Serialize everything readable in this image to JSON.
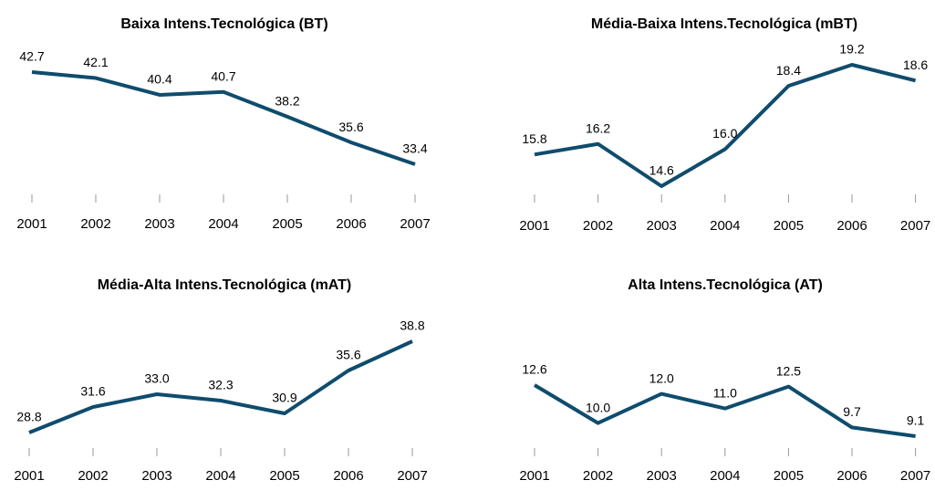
{
  "chart_data": [
    {
      "type": "line",
      "title": "Baixa Intens.Tecnológica (BT)",
      "categories": [
        "2001",
        "2002",
        "2003",
        "2004",
        "2005",
        "2006",
        "2007"
      ],
      "series": [
        {
          "color": "#0f4c6d",
          "values": [
            42.7,
            42.1,
            40.4,
            40.7,
            38.2,
            35.6,
            33.4
          ]
        }
      ]
    },
    {
      "type": "line",
      "title": "Média-Baixa Intens.Tecnológica (mBT)",
      "categories": [
        "2001",
        "2002",
        "2003",
        "2004",
        "2005",
        "2006",
        "2007"
      ],
      "series": [
        {
          "color": "#0f4c6d",
          "values": [
            15.8,
            16.2,
            14.6,
            16,
            18.4,
            19.2,
            18.6
          ],
          "value_labels": [
            "15.8",
            "16.2",
            "14.6",
            "16.0",
            "18.4",
            "19.2",
            "18.6"
          ]
        }
      ]
    },
    {
      "type": "line",
      "title": "Média-Alta Intens.Tecnológica (mAT)",
      "categories": [
        "2001",
        "2002",
        "2003",
        "2004",
        "2005",
        "2006",
        "2007"
      ],
      "series": [
        {
          "color": "#0f4c6d",
          "values": [
            28.8,
            31.6,
            33,
            32.3,
            30.9,
            35.6,
            38.8
          ],
          "value_labels": [
            "28.8",
            "31.6",
            "33.0",
            "32.3",
            "30.9",
            "35.6",
            "38.8"
          ]
        }
      ]
    },
    {
      "type": "line",
      "title": "Alta Intens.Tecnológica (AT)",
      "categories": [
        "2001",
        "2002",
        "2003",
        "2004",
        "2005",
        "2006",
        "2007"
      ],
      "series": [
        {
          "color": "#0f4c6d",
          "values": [
            12.6,
            10,
            12,
            11,
            12.5,
            9.7,
            9.1
          ],
          "value_labels": [
            "12.6",
            "10.0",
            "12.0",
            "11.0",
            "12.5",
            "9.7",
            "9.1"
          ]
        }
      ]
    }
  ]
}
